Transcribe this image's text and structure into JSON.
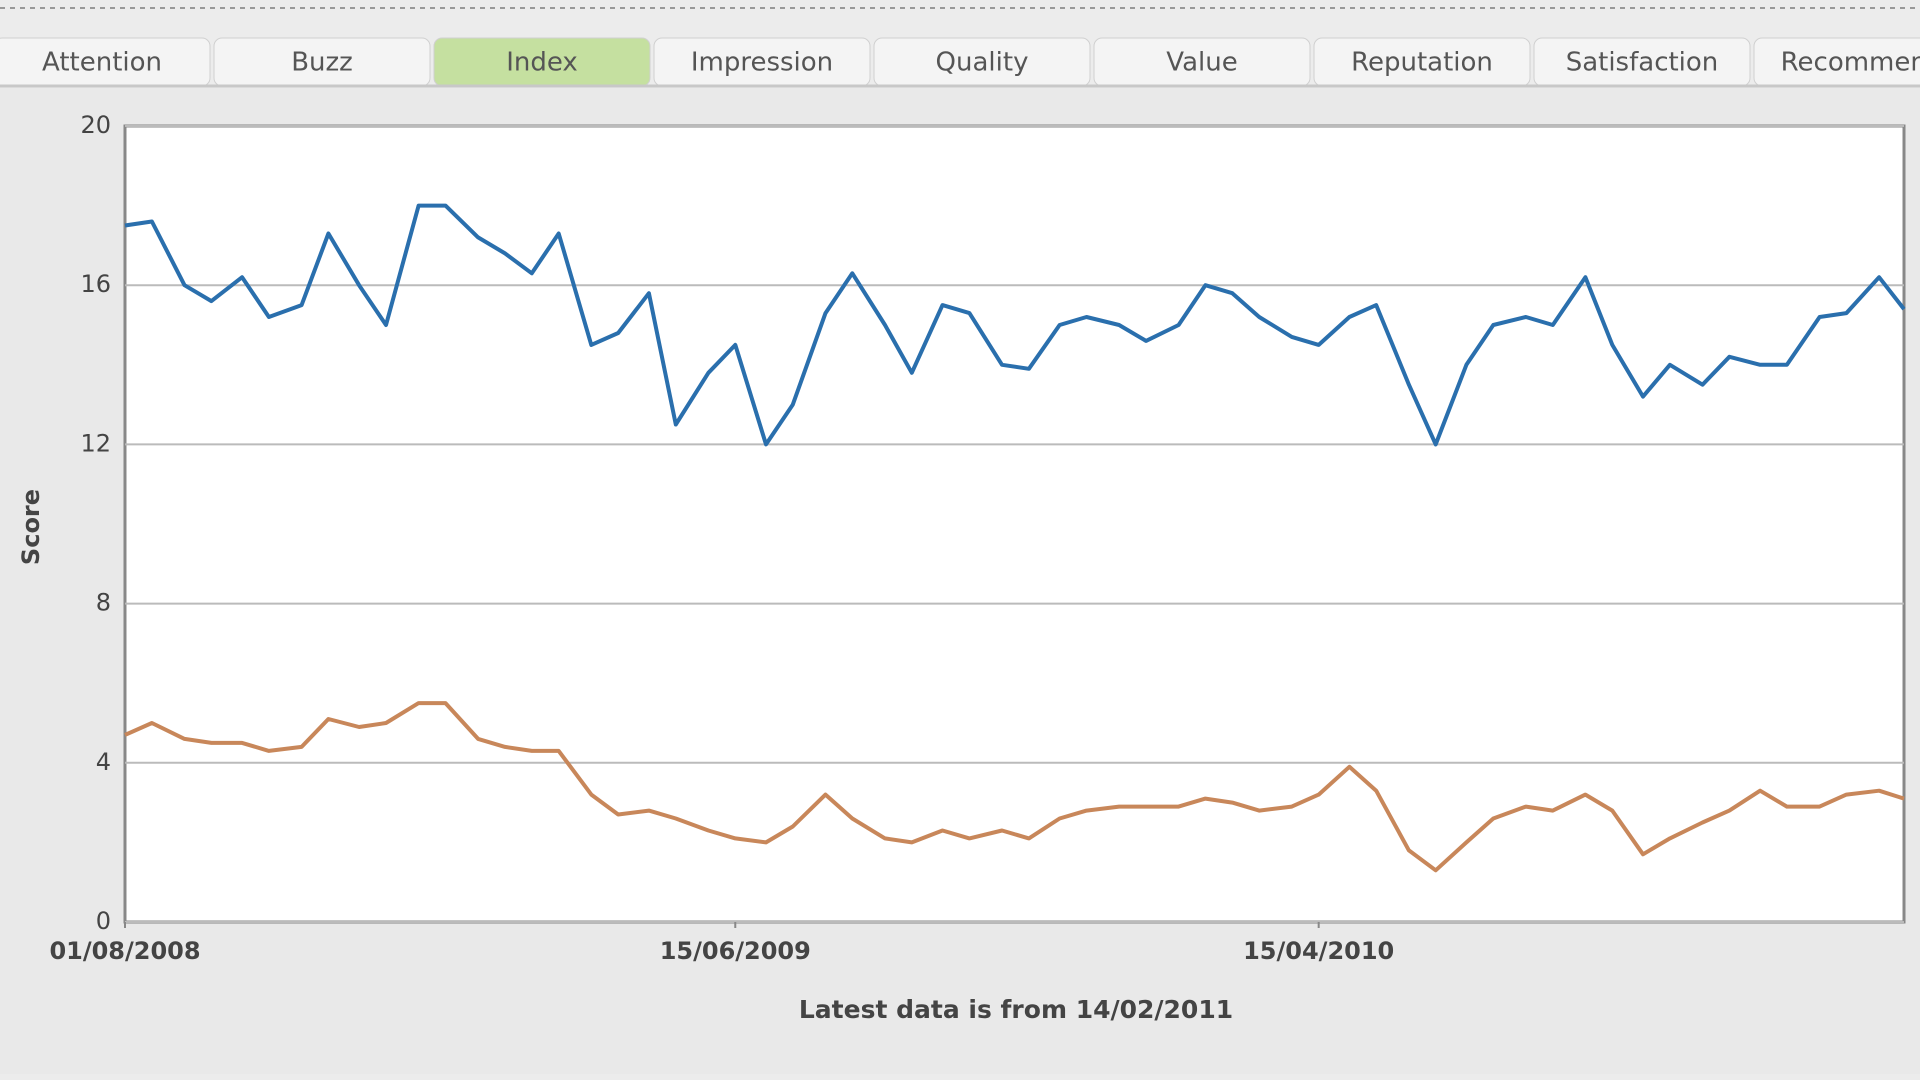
{
  "tabs": {
    "items": [
      "Attention",
      "Buzz",
      "Index",
      "Impression",
      "Quality",
      "Value",
      "Reputation",
      "Satisfaction",
      "Recommend"
    ],
    "active": 2
  },
  "chart_data": {
    "type": "line",
    "ylabel": "Score",
    "note": "Latest data is from 14/02/2011",
    "x": [
      "01/08/2008",
      "15/08/2008",
      "01/09/2008",
      "15/09/2008",
      "01/10/2008",
      "15/10/2008",
      "01/11/2008",
      "15/11/2008",
      "01/12/2008",
      "15/12/2008",
      "01/01/2009",
      "15/01/2009",
      "01/02/2009",
      "15/02/2009",
      "01/03/2009",
      "15/03/2009",
      "01/04/2009",
      "15/04/2009",
      "01/05/2009",
      "15/05/2009",
      "01/06/2009",
      "15/06/2009",
      "01/07/2009",
      "15/07/2009",
      "01/08/2009",
      "15/08/2009",
      "01/09/2009",
      "15/09/2009",
      "01/10/2009",
      "15/10/2009",
      "01/11/2009",
      "15/11/2009",
      "01/12/2009",
      "15/12/2009",
      "01/01/2010",
      "15/01/2010",
      "01/02/2010",
      "15/02/2010",
      "01/03/2010",
      "15/03/2010",
      "01/04/2010",
      "15/04/2010",
      "01/05/2010",
      "15/05/2010",
      "01/06/2010",
      "15/06/2010",
      "01/07/2010",
      "15/07/2010",
      "01/08/2010",
      "15/08/2010",
      "01/09/2010",
      "15/09/2010",
      "01/10/2010",
      "15/10/2010",
      "01/11/2010",
      "15/11/2010",
      "01/12/2010",
      "15/12/2010",
      "01/01/2011",
      "15/01/2011",
      "01/02/2011",
      "14/02/2011"
    ],
    "series": [
      {
        "color": "#2a6fad",
        "values": [
          17.5,
          17.6,
          16.0,
          15.6,
          16.2,
          15.2,
          15.5,
          17.3,
          16.0,
          15.0,
          18.0,
          18.0,
          17.2,
          16.8,
          16.3,
          17.3,
          14.5,
          14.8,
          15.8,
          12.5,
          13.8,
          14.5,
          12.0,
          13.0,
          15.3,
          16.3,
          15.0,
          13.8,
          15.5,
          15.3,
          14.0,
          13.9,
          15.0,
          15.2,
          15.0,
          14.6,
          15.0,
          16.0,
          15.8,
          15.2,
          14.7,
          14.5,
          15.2,
          15.5,
          13.5,
          12.0,
          14.0,
          15.0,
          15.2,
          15.0,
          16.2,
          14.5,
          13.2,
          14.0,
          13.5,
          14.2,
          14.0,
          14.0,
          15.2,
          15.3,
          16.2,
          15.4
        ]
      },
      {
        "color": "#c8875a",
        "values": [
          4.7,
          5.0,
          4.6,
          4.5,
          4.5,
          4.3,
          4.4,
          5.1,
          4.9,
          5.0,
          5.5,
          5.5,
          4.6,
          4.4,
          4.3,
          4.3,
          3.2,
          2.7,
          2.8,
          2.6,
          2.3,
          2.1,
          2.0,
          2.4,
          3.2,
          2.6,
          2.1,
          2.0,
          2.3,
          2.1,
          2.3,
          2.1,
          2.6,
          2.8,
          2.9,
          2.9,
          2.9,
          3.1,
          3.0,
          2.8,
          2.9,
          3.2,
          3.9,
          3.3,
          1.8,
          1.3,
          2.0,
          2.6,
          2.9,
          2.8,
          3.2,
          2.8,
          1.7,
          2.1,
          2.5,
          2.8,
          3.3,
          2.9,
          2.9,
          3.2,
          3.3,
          3.1
        ]
      }
    ],
    "xlim": [
      "01/08/2008",
      "14/02/2011"
    ],
    "xticks": [
      "01/08/2008",
      "15/06/2009",
      "15/04/2010"
    ],
    "ylim": [
      0,
      20
    ],
    "yticks": [
      0,
      4,
      8,
      12,
      16,
      20
    ],
    "grid": true
  }
}
